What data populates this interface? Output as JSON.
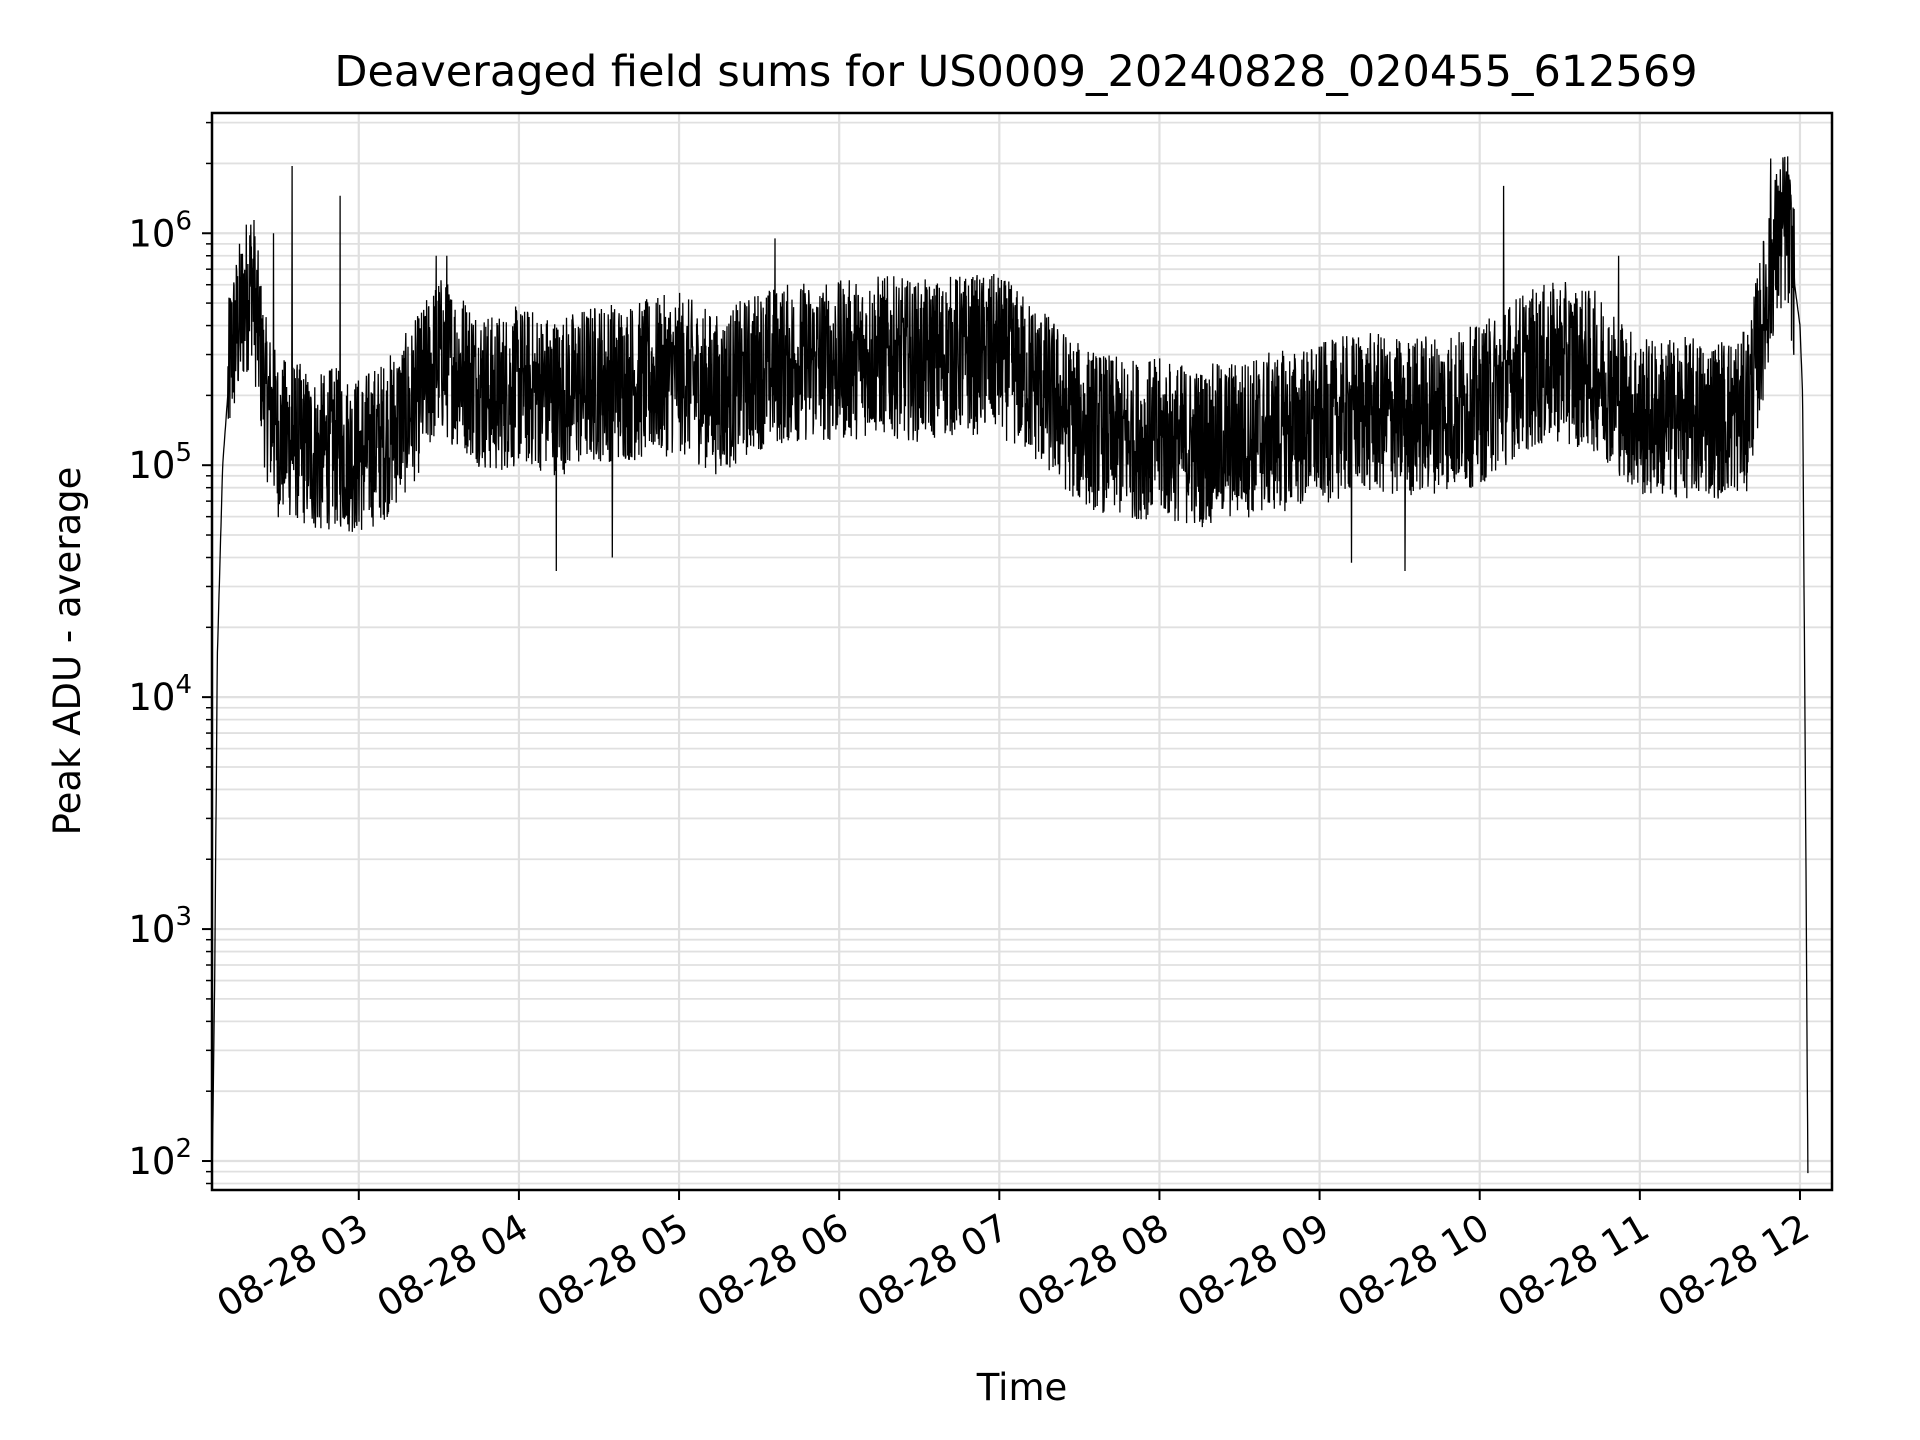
{
  "chart_data": {
    "type": "line",
    "title": "Deaveraged field sums for US0009_20240828_020455_612569",
    "xlabel": "Time",
    "ylabel": "Peak ADU - average",
    "yscale": "log",
    "ylim": [
      75,
      3300000
    ],
    "xlim": [
      "2024-08-28 02:05",
      "2024-08-28 12:12"
    ],
    "grid": true,
    "line_color": "#000000",
    "x_ticks": [
      "08-28 03",
      "08-28 04",
      "08-28 05",
      "08-28 06",
      "08-28 07",
      "08-28 08",
      "08-28 09",
      "08-28 10",
      "08-28 11",
      "08-28 12"
    ],
    "y_ticks": [
      {
        "base": "10",
        "exp": "2"
      },
      {
        "base": "10",
        "exp": "3"
      },
      {
        "base": "10",
        "exp": "4"
      },
      {
        "base": "10",
        "exp": "5"
      },
      {
        "base": "10",
        "exp": "6"
      }
    ],
    "series": [
      {
        "x": [
          "2024-08-28 02:05",
          "2024-08-28 02:06",
          "2024-08-28 02:07",
          "2024-08-28 02:09",
          "2024-08-28 02:12",
          "2024-08-28 02:16",
          "2024-08-28 02:20",
          "2024-08-28 02:25",
          "2024-08-28 02:30",
          "2024-08-28 02:35",
          "2024-08-28 02:40",
          "2024-08-28 02:45",
          "2024-08-28 02:50",
          "2024-08-28 02:55",
          "2024-08-28 03:00",
          "2024-08-28 03:10",
          "2024-08-28 03:20",
          "2024-08-28 03:30",
          "2024-08-28 03:40",
          "2024-08-28 03:45",
          "2024-08-28 03:50",
          "2024-08-28 04:00",
          "2024-08-28 04:15",
          "2024-08-28 04:30",
          "2024-08-28 04:45",
          "2024-08-28 05:00",
          "2024-08-28 05:15",
          "2024-08-28 05:30",
          "2024-08-28 05:45",
          "2024-08-28 06:00",
          "2024-08-28 06:15",
          "2024-08-28 06:30",
          "2024-08-28 06:45",
          "2024-08-28 07:00",
          "2024-08-28 07:15",
          "2024-08-28 07:30",
          "2024-08-28 07:45",
          "2024-08-28 08:00",
          "2024-08-28 08:15",
          "2024-08-28 08:30",
          "2024-08-28 08:45",
          "2024-08-28 09:00",
          "2024-08-28 09:15",
          "2024-08-28 09:30",
          "2024-08-28 09:45",
          "2024-08-28 10:00",
          "2024-08-28 10:15",
          "2024-08-28 10:30",
          "2024-08-28 10:45",
          "2024-08-28 11:00",
          "2024-08-28 11:15",
          "2024-08-28 11:30",
          "2024-08-28 11:40",
          "2024-08-28 11:45",
          "2024-08-28 11:50",
          "2024-08-28 11:55",
          "2024-08-28 11:58",
          "2024-08-28 12:00",
          "2024-08-28 12:01",
          "2024-08-28 12:02",
          "2024-08-28 12:03"
        ],
        "y": [
          75,
          600,
          15000,
          100000,
          300000,
          450000,
          650000,
          200000,
          130000,
          130000,
          120000,
          110000,
          120000,
          115000,
          110000,
          130000,
          180000,
          300000,
          250000,
          220000,
          200000,
          220000,
          200000,
          230000,
          230000,
          250000,
          200000,
          260000,
          280000,
          280000,
          300000,
          280000,
          300000,
          300000,
          220000,
          150000,
          130000,
          130000,
          120000,
          130000,
          140000,
          150000,
          170000,
          160000,
          170000,
          180000,
          250000,
          280000,
          250000,
          160000,
          160000,
          160000,
          170000,
          350000,
          800000,
          1100000,
          600000,
          400000,
          200000,
          5000,
          75
        ]
      }
    ],
    "spikes": [
      {
        "x": "2024-08-28 02:28",
        "y": 1000000
      },
      {
        "x": "2024-08-28 02:35",
        "y": 1950000
      },
      {
        "x": "2024-08-28 02:53",
        "y": 1450000
      },
      {
        "x": "2024-08-28 03:29",
        "y": 800000
      },
      {
        "x": "2024-08-28 03:33",
        "y": 800000
      },
      {
        "x": "2024-08-28 05:36",
        "y": 950000
      },
      {
        "x": "2024-08-28 10:09",
        "y": 1600000
      },
      {
        "x": "2024-08-28 10:52",
        "y": 800000
      },
      {
        "x": "2024-08-28 11:49",
        "y": 2100000
      },
      {
        "x": "2024-08-28 04:14",
        "y": 35000
      },
      {
        "x": "2024-08-28 04:35",
        "y": 40000
      },
      {
        "x": "2024-08-28 09:12",
        "y": 38000
      },
      {
        "x": "2024-08-28 09:32",
        "y": 35000
      }
    ]
  }
}
